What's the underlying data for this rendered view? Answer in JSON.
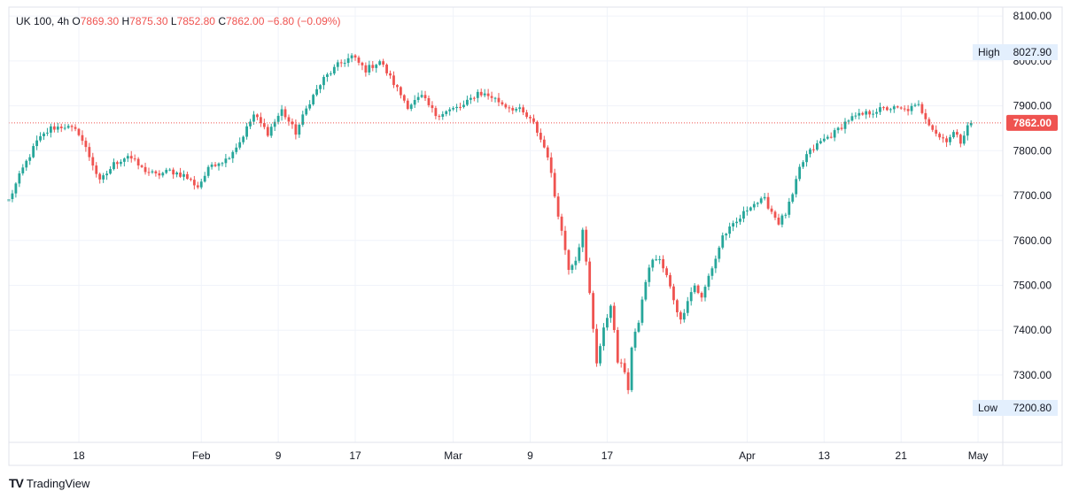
{
  "legend": {
    "symbol": "UK 100",
    "interval": "4h",
    "open_label": "O",
    "open": "7869.30",
    "high_label": "H",
    "high": "7875.30",
    "low_label": "L",
    "low": "7852.80",
    "close_label": "C",
    "close": "7862.00",
    "change": "−6.80 (−0.09%)"
  },
  "branding": {
    "name": "TradingView"
  },
  "colors": {
    "up": "#26a69a",
    "down": "#ef5350",
    "grid": "#f0f3fa",
    "axis_text": "#131722",
    "badge_bg": "#e3effd"
  },
  "chart_data": {
    "type": "candlestick",
    "ylim": [
      7150,
      8120
    ],
    "y_ticks": [
      "8100.00",
      "8000.00",
      "7900.00",
      "7800.00",
      "7700.00",
      "7600.00",
      "7500.00",
      "7400.00",
      "7300.00"
    ],
    "x_ticks": [
      {
        "label": "18",
        "bar": 20
      },
      {
        "label": "Feb",
        "bar": 55
      },
      {
        "label": "9",
        "bar": 77
      },
      {
        "label": "17",
        "bar": 99
      },
      {
        "label": "Mar",
        "bar": 127
      },
      {
        "label": "9",
        "bar": 149
      },
      {
        "label": "17",
        "bar": 171
      },
      {
        "label": "Apr",
        "bar": 211
      },
      {
        "label": "13",
        "bar": 233
      },
      {
        "label": "21",
        "bar": 255
      },
      {
        "label": "May",
        "bar": 277
      }
    ],
    "last_price": "7862.00",
    "high_marker": {
      "label": "High",
      "value": "8027.90"
    },
    "low_marker": {
      "label": "Low",
      "value": "7200.80"
    },
    "anchors": [
      [
        0,
        7690
      ],
      [
        4,
        7760
      ],
      [
        8,
        7820
      ],
      [
        12,
        7850
      ],
      [
        16,
        7855
      ],
      [
        20,
        7840
      ],
      [
        24,
        7770
      ],
      [
        26,
        7730
      ],
      [
        30,
        7770
      ],
      [
        34,
        7790
      ],
      [
        38,
        7760
      ],
      [
        42,
        7745
      ],
      [
        46,
        7755
      ],
      [
        50,
        7745
      ],
      [
        54,
        7720
      ],
      [
        58,
        7770
      ],
      [
        62,
        7780
      ],
      [
        66,
        7820
      ],
      [
        70,
        7880
      ],
      [
        74,
        7840
      ],
      [
        78,
        7890
      ],
      [
        82,
        7840
      ],
      [
        86,
        7910
      ],
      [
        90,
        7960
      ],
      [
        94,
        7990
      ],
      [
        98,
        8010
      ],
      [
        102,
        7980
      ],
      [
        106,
        8000
      ],
      [
        110,
        7950
      ],
      [
        114,
        7900
      ],
      [
        118,
        7920
      ],
      [
        122,
        7880
      ],
      [
        126,
        7890
      ],
      [
        130,
        7900
      ],
      [
        134,
        7930
      ],
      [
        138,
        7920
      ],
      [
        142,
        7900
      ],
      [
        146,
        7890
      ],
      [
        150,
        7860
      ],
      [
        154,
        7790
      ],
      [
        156,
        7700
      ],
      [
        158,
        7620
      ],
      [
        160,
        7540
      ],
      [
        162,
        7560
      ],
      [
        164,
        7620
      ],
      [
        166,
        7480
      ],
      [
        168,
        7330
      ],
      [
        170,
        7400
      ],
      [
        172,
        7460
      ],
      [
        174,
        7330
      ],
      [
        176,
        7310
      ],
      [
        177,
        7270
      ],
      [
        178,
        7360
      ],
      [
        180,
        7420
      ],
      [
        182,
        7510
      ],
      [
        184,
        7560
      ],
      [
        186,
        7555
      ],
      [
        188,
        7520
      ],
      [
        190,
        7470
      ],
      [
        192,
        7420
      ],
      [
        194,
        7470
      ],
      [
        196,
        7500
      ],
      [
        198,
        7470
      ],
      [
        200,
        7520
      ],
      [
        202,
        7560
      ],
      [
        204,
        7610
      ],
      [
        208,
        7640
      ],
      [
        212,
        7680
      ],
      [
        216,
        7690
      ],
      [
        220,
        7640
      ],
      [
        222,
        7660
      ],
      [
        224,
        7700
      ],
      [
        226,
        7760
      ],
      [
        228,
        7790
      ],
      [
        232,
        7820
      ],
      [
        236,
        7840
      ],
      [
        240,
        7870
      ],
      [
        244,
        7880
      ],
      [
        248,
        7890
      ],
      [
        252,
        7895
      ],
      [
        256,
        7890
      ],
      [
        260,
        7900
      ],
      [
        262,
        7875
      ],
      [
        264,
        7850
      ],
      [
        266,
        7830
      ],
      [
        268,
        7825
      ],
      [
        270,
        7840
      ],
      [
        272,
        7820
      ],
      [
        274,
        7860
      ],
      [
        275,
        7862
      ]
    ]
  }
}
